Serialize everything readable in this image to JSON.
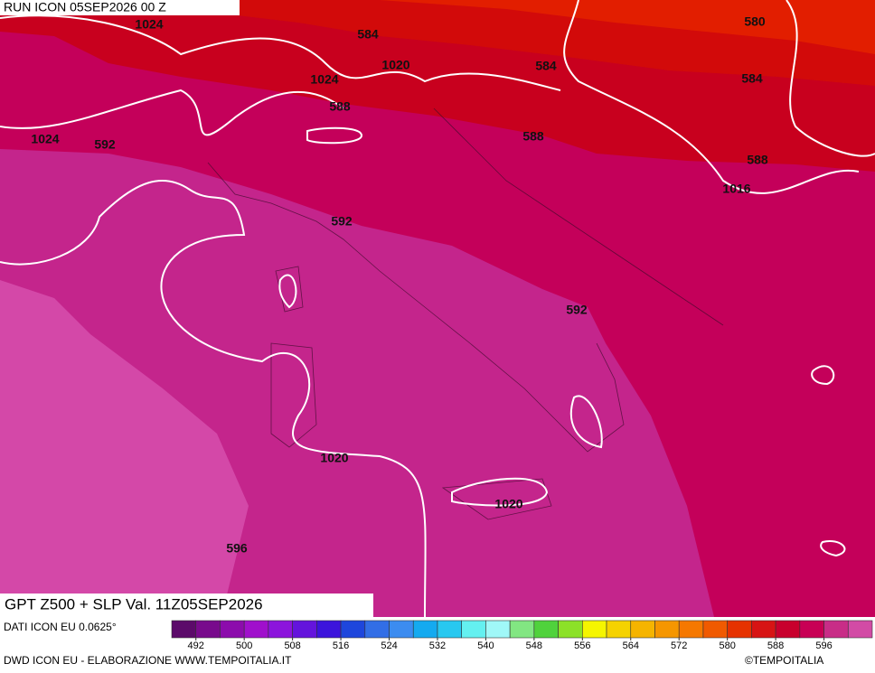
{
  "header": {
    "run": "RUN ICON 05SEP2026 00 Z",
    "title": "GPT Z500 + SLP Val. 11Z05SEP2026"
  },
  "map_labels": [
    "1024",
    "584",
    "580",
    "1020",
    "584",
    "1024",
    "584",
    "588",
    "1024",
    "592",
    "588",
    "588",
    "1016",
    "592",
    "592",
    "1020",
    "1020",
    "596"
  ],
  "colorbar": {
    "clim": [
      488,
      604
    ],
    "ticks": [
      492,
      500,
      508,
      516,
      524,
      532,
      540,
      548,
      556,
      564,
      572,
      580,
      588,
      596
    ],
    "colors": [
      "#5c0a6a",
      "#780a8c",
      "#8c0cac",
      "#a010cc",
      "#8c14dc",
      "#6414dc",
      "#3c14dc",
      "#1e46dc",
      "#326ee6",
      "#3c8cf0",
      "#14aaf0",
      "#28c8f0",
      "#64f0f0",
      "#a0f8f8",
      "#82e682",
      "#50d23c",
      "#8ce128",
      "#f5f500",
      "#f5d200",
      "#f5b400",
      "#f59600",
      "#f57800",
      "#f05a00",
      "#e63200",
      "#d71414",
      "#c8002d",
      "#c80055",
      "#c82d87",
      "#d24ba5"
    ]
  },
  "footer": {
    "data_source": "DATI ICON EU 0.0625°",
    "credit": "DWD ICON EU - ELABORAZIONE WWW.TEMPOITALIA.IT",
    "copyright": "©TEMPOITALIA"
  }
}
